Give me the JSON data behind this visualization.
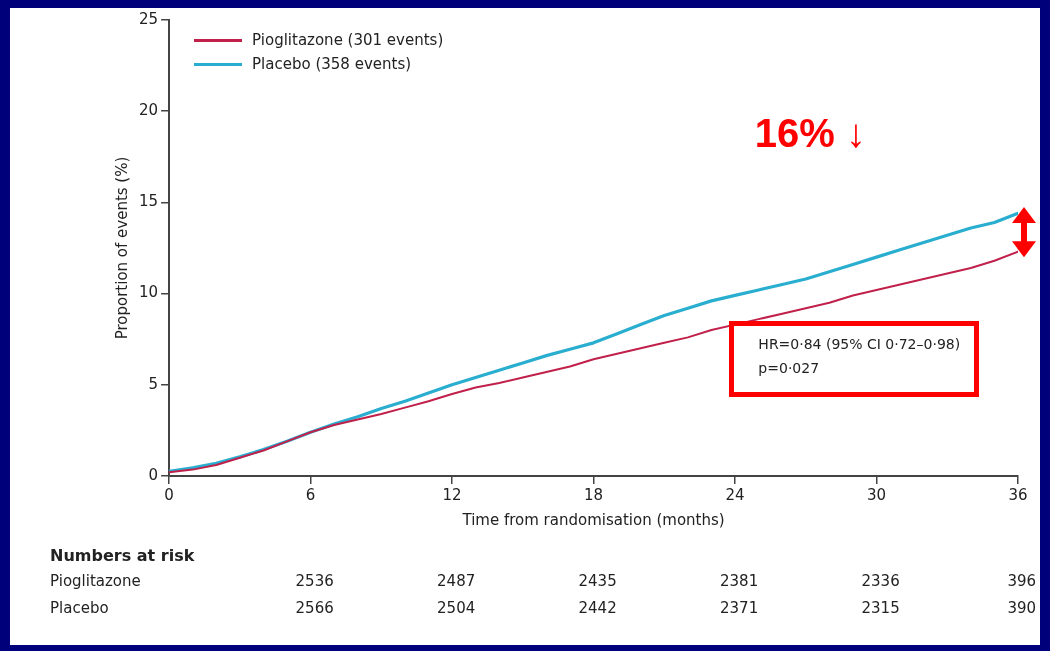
{
  "chart_data": {
    "type": "line",
    "xlabel": "Time from randomisation (months)",
    "ylabel": "Proportion of events (%)",
    "x": [
      0,
      1,
      2,
      3,
      4,
      5,
      6,
      7,
      8,
      9,
      10,
      11,
      12,
      13,
      14,
      15,
      16,
      17,
      18,
      19,
      20,
      21,
      22,
      23,
      24,
      25,
      26,
      27,
      28,
      29,
      30,
      31,
      32,
      33,
      34,
      35,
      36
    ],
    "series": [
      {
        "name": "Pioglitazone (301 events)",
        "color": "#c0204a",
        "values": [
          0.2,
          0.35,
          0.6,
          1.0,
          1.4,
          1.9,
          2.4,
          2.8,
          3.1,
          3.4,
          3.75,
          4.1,
          4.5,
          4.85,
          5.1,
          5.4,
          5.7,
          6.0,
          6.4,
          6.7,
          7.0,
          7.3,
          7.6,
          8.0,
          8.3,
          8.6,
          8.9,
          9.2,
          9.5,
          9.9,
          10.2,
          10.5,
          10.8,
          11.1,
          11.4,
          11.8,
          12.3
        ]
      },
      {
        "name": "Placebo (358 events)",
        "color": "#2aaed0",
        "values": [
          0.25,
          0.45,
          0.7,
          1.05,
          1.45,
          1.9,
          2.4,
          2.85,
          3.25,
          3.7,
          4.1,
          4.55,
          5.0,
          5.4,
          5.8,
          6.2,
          6.6,
          6.95,
          7.3,
          7.8,
          8.3,
          8.8,
          9.2,
          9.6,
          9.9,
          10.2,
          10.5,
          10.8,
          11.2,
          11.6,
          12.0,
          12.4,
          12.8,
          13.2,
          13.6,
          13.9,
          14.4
        ]
      }
    ],
    "xlim": [
      0,
      36
    ],
    "xticks": [
      0,
      6,
      12,
      18,
      24,
      30,
      36
    ],
    "ylim": [
      0,
      25
    ],
    "yticks": [
      0,
      5,
      10,
      15,
      20,
      25
    ],
    "grid": false,
    "legend": "top left",
    "marker": "none",
    "line_style": "solid",
    "annotations": [
      "16% ↓",
      "HR=0·84 (95% CI 0·72–0·98)\np=0·027",
      "Numbers at risk",
      "Pioglitazone",
      "2536",
      "2487",
      "2435",
      "2381",
      "2336",
      "396",
      "Placebo",
      "2566",
      "2504",
      "2442",
      "2371",
      "2315",
      "390"
    ]
  }
}
